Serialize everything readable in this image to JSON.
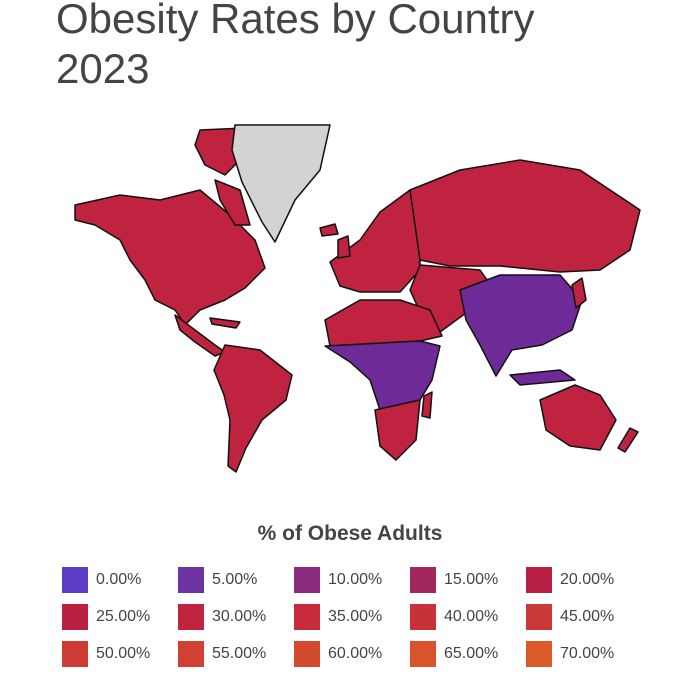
{
  "title_line1": "Obesity Rates by Country",
  "title_line2": "2023",
  "legend": {
    "title": "% of Obese Adults",
    "items": [
      {
        "label": "0.00%",
        "color": "#5b3cc4"
      },
      {
        "label": "5.00%",
        "color": "#6e33a3"
      },
      {
        "label": "10.00%",
        "color": "#8c2c7e"
      },
      {
        "label": "15.00%",
        "color": "#a3275f"
      },
      {
        "label": "20.00%",
        "color": "#b81f45"
      },
      {
        "label": "25.00%",
        "color": "#bb1f42"
      },
      {
        "label": "30.00%",
        "color": "#c1243e"
      },
      {
        "label": "35.00%",
        "color": "#c62a3b"
      },
      {
        "label": "40.00%",
        "color": "#c93139"
      },
      {
        "label": "45.00%",
        "color": "#cb3838"
      },
      {
        "label": "50.00%",
        "color": "#cd3d36"
      },
      {
        "label": "55.00%",
        "color": "#d04133"
      },
      {
        "label": "60.00%",
        "color": "#d44a2f"
      },
      {
        "label": "65.00%",
        "color": "#d9532c"
      },
      {
        "label": "70.00%",
        "color": "#dc5a2a"
      }
    ]
  },
  "map_colors": {
    "no_data": "#d3d3d3",
    "low": "#6e2b98",
    "high": "#c0233f",
    "border": "#111111"
  }
}
